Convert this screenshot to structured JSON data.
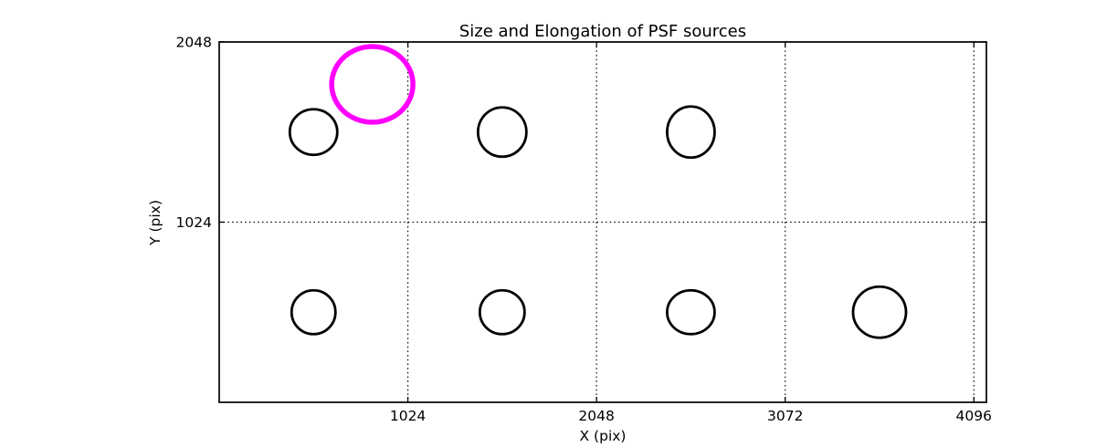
{
  "chart_data": {
    "type": "scatter",
    "title": "Size and Elongation of PSF sources",
    "xlabel": "X (pix)",
    "ylabel": "Y (pix)",
    "xlim": [
      0,
      4164
    ],
    "ylim": [
      0,
      2048
    ],
    "xticks": [
      1024,
      2048,
      3072,
      4096
    ],
    "yticks": [
      1024,
      2048
    ],
    "grid": {
      "visible": true,
      "style": "dotted",
      "color": "#000000"
    },
    "legend": "none",
    "background_color": "#ffffff",
    "axis_color": "#000000",
    "highlight_color": "#ff00ff",
    "source_color": "#000000",
    "sources": [
      {
        "x": 831,
        "y": 1807,
        "rx_pix": 44.5,
        "ry_pix": 41.5,
        "color": "#ff00ff",
        "stroke_width": 5.5,
        "highlighted": true
      },
      {
        "x": 512,
        "y": 1536,
        "rx_pix": 26.0,
        "ry_pix": 25.0,
        "color": "#000000",
        "stroke_width": 2.8,
        "highlighted": false
      },
      {
        "x": 1536,
        "y": 1536,
        "rx_pix": 26.5,
        "ry_pix": 27.0,
        "color": "#000000",
        "stroke_width": 2.8,
        "highlighted": false
      },
      {
        "x": 2560,
        "y": 1536,
        "rx_pix": 26.0,
        "ry_pix": 28.0,
        "color": "#000000",
        "stroke_width": 2.8,
        "highlighted": false
      },
      {
        "x": 512,
        "y": 512,
        "rx_pix": 24.0,
        "ry_pix": 24.0,
        "color": "#000000",
        "stroke_width": 2.8,
        "highlighted": false
      },
      {
        "x": 1536,
        "y": 512,
        "rx_pix": 24.5,
        "ry_pix": 24.0,
        "color": "#000000",
        "stroke_width": 2.8,
        "highlighted": false
      },
      {
        "x": 2560,
        "y": 512,
        "rx_pix": 26.0,
        "ry_pix": 24.0,
        "color": "#000000",
        "stroke_width": 2.8,
        "highlighted": false
      },
      {
        "x": 3584,
        "y": 512,
        "rx_pix": 29.0,
        "ry_pix": 28.0,
        "color": "#000000",
        "stroke_width": 2.8,
        "highlighted": false
      }
    ]
  }
}
